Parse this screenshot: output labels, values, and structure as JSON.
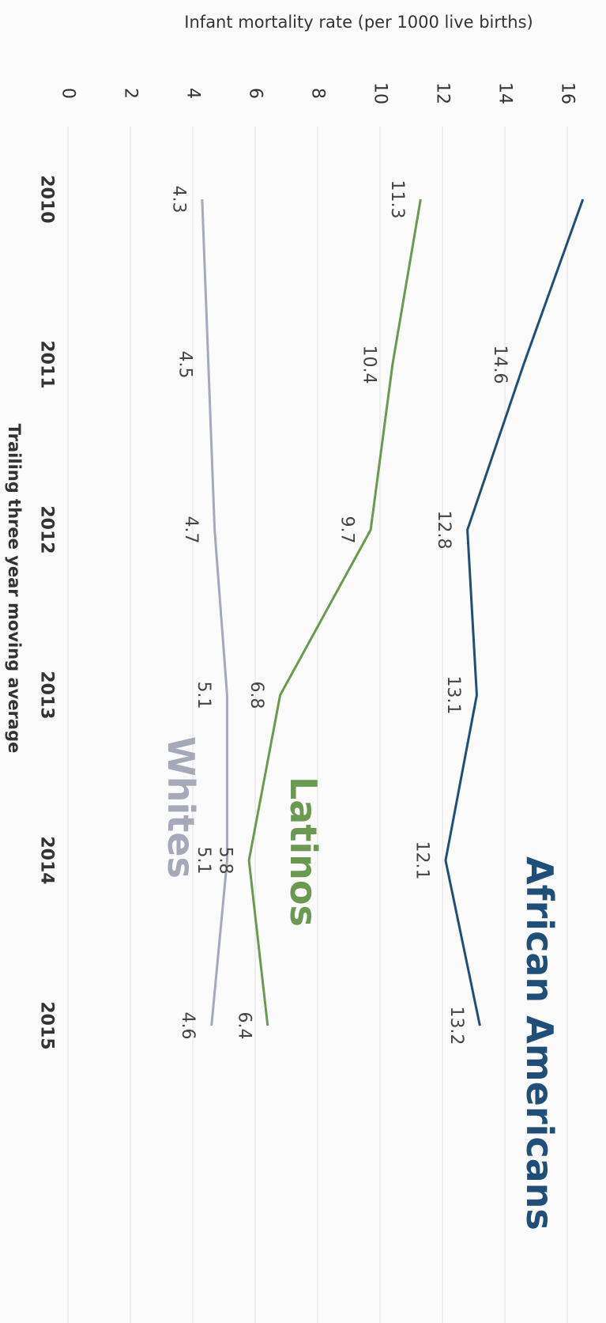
{
  "chart_data": {
    "type": "line",
    "orientation": "rotated 90 degrees clockwise",
    "ylabel": "Infant mortality rate (per 1000 live births)",
    "xlabel": "Trailing three year moving average",
    "categories": [
      "2010",
      "2011",
      "2012",
      "2013",
      "2014",
      "2015"
    ],
    "y_ticks": [
      "0",
      "2",
      "4",
      "6",
      "8",
      "10",
      "12",
      "14",
      "16"
    ],
    "ylim": [
      0,
      16
    ],
    "grid": true,
    "series": [
      {
        "name": "African Americans",
        "color": "#1f4e79",
        "values": [
          16.5,
          14.6,
          12.8,
          13.1,
          12.1,
          13.2
        ],
        "labels": [
          "",
          "14.6",
          "12.8",
          "13.1",
          "12.1",
          "13.2"
        ]
      },
      {
        "name": "Latinos",
        "color": "#6a9a4f",
        "values": [
          11.3,
          10.4,
          9.7,
          6.8,
          5.8,
          6.4
        ],
        "labels": [
          "11.3",
          "10.4",
          "9.7",
          "6.8",
          "5.8",
          "6.4"
        ]
      },
      {
        "name": "Whites",
        "color": "#a6a9b8",
        "values": [
          4.3,
          4.5,
          4.7,
          5.1,
          5.1,
          4.6
        ],
        "labels": [
          "4.3",
          "4.5",
          "4.7",
          "5.1",
          "5.1",
          "4.6"
        ]
      }
    ]
  }
}
